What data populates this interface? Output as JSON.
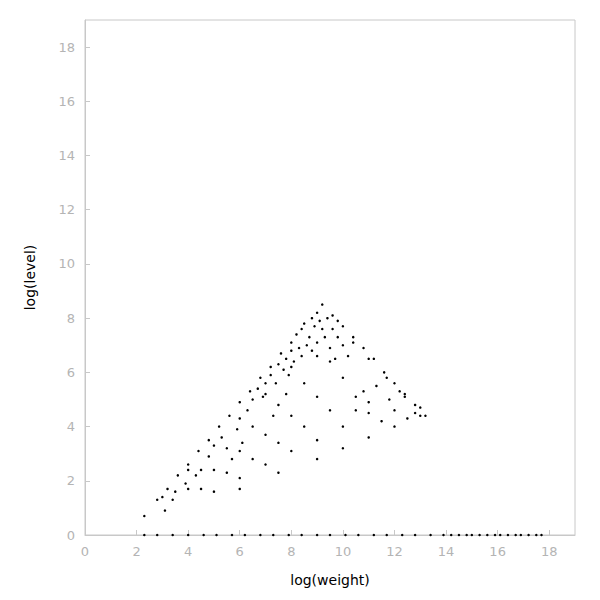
{
  "chart_data": {
    "type": "scatter",
    "xlabel": "log(weight)",
    "ylabel": "log(level)",
    "xlim": [
      0,
      19
    ],
    "ylim": [
      0,
      19
    ],
    "xticks": [
      0,
      2,
      4,
      6,
      8,
      10,
      12,
      14,
      16,
      18
    ],
    "yticks": [
      0,
      2,
      4,
      6,
      8,
      10,
      12,
      14,
      16,
      18
    ],
    "grid": false,
    "color": "#000000",
    "marker": "circle",
    "x": [
      2.3,
      2.8,
      3.4,
      4.0,
      4.6,
      5.1,
      5.7,
      6.2,
      6.8,
      7.3,
      7.9,
      8.4,
      9.0,
      9.5,
      10.1,
      10.6,
      11.2,
      11.7,
      12.3,
      12.8,
      13.4,
      13.9,
      14.2,
      14.5,
      14.8,
      15.0,
      15.3,
      15.6,
      15.9,
      16.1,
      16.4,
      16.7,
      16.9,
      17.2,
      17.5,
      17.7,
      2.3,
      2.8,
      3.2,
      3.6,
      4.0,
      4.4,
      4.8,
      5.2,
      5.6,
      6.0,
      6.4,
      6.8,
      7.2,
      7.6,
      8.0,
      8.4,
      8.8,
      9.2,
      9.6,
      10.0,
      10.4,
      10.8,
      11.2,
      11.6,
      12.0,
      12.4,
      12.8,
      13.2,
      3.0,
      4.0,
      5.0,
      6.0,
      7.0,
      8.0,
      9.0,
      9.8,
      3.5,
      4.5,
      5.5,
      6.5,
      7.5,
      8.5,
      9.5,
      10.4,
      4.0,
      5.0,
      6.0,
      7.0,
      8.0,
      9.0,
      10.0,
      11.0,
      4.5,
      5.5,
      6.5,
      7.5,
      8.5,
      9.5,
      10.5,
      11.7,
      5.0,
      6.0,
      7.0,
      8.0,
      9.0,
      10.0,
      11.0,
      12.4,
      6.0,
      7.5,
      9.0,
      10.0,
      11.0,
      12.0,
      13.0,
      11.5,
      12.0,
      12.5,
      12.8,
      13.0,
      11.8,
      12.2,
      11.3,
      10.8,
      10.5,
      11.0,
      8.2,
      8.5,
      8.7,
      8.9,
      9.0,
      9.1,
      8.6,
      8.3,
      8.0,
      7.8,
      7.5,
      7.7,
      8.1,
      8.4,
      8.8,
      9.2,
      9.4,
      9.3,
      9.6,
      9.8,
      9.5,
      9.0,
      10.0,
      10.2,
      9.7,
      7.2,
      7.0,
      6.7,
      6.5,
      6.9,
      7.4,
      7.9,
      3.4,
      3.9,
      4.8,
      5.3,
      5.9,
      6.3,
      6.1,
      5.7,
      7.3,
      7.8,
      3.1,
      4.3
    ],
    "values": [
      0,
      0,
      0,
      0,
      0,
      0,
      0,
      0,
      0,
      0,
      0,
      0,
      0,
      0,
      0,
      0,
      0,
      0,
      0,
      0,
      0,
      0,
      0,
      0,
      0,
      0,
      0,
      0,
      0,
      0,
      0,
      0,
      0,
      0,
      0,
      0,
      0.7,
      1.3,
      1.7,
      2.2,
      2.6,
      3.1,
      3.5,
      4.0,
      4.4,
      4.9,
      5.3,
      5.8,
      6.2,
      6.7,
      7.1,
      7.6,
      8.0,
      8.5,
      8.1,
      7.7,
      7.3,
      6.9,
      6.5,
      6.0,
      5.6,
      5.2,
      4.8,
      4.4,
      1.4,
      2.4,
      3.3,
      4.3,
      5.2,
      6.2,
      7.1,
      7.9,
      1.6,
      2.4,
      3.2,
      4.0,
      4.8,
      5.6,
      6.4,
      7.1,
      1.7,
      2.4,
      3.1,
      3.7,
      4.4,
      5.1,
      5.8,
      6.5,
      1.7,
      2.3,
      2.8,
      3.4,
      4.0,
      4.6,
      5.1,
      5.8,
      1.6,
      2.1,
      2.6,
      3.1,
      3.5,
      4.0,
      4.5,
      5.1,
      1.7,
      2.3,
      2.8,
      3.2,
      3.6,
      4.0,
      4.4,
      4.2,
      4.6,
      4.3,
      4.5,
      4.7,
      5.0,
      5.3,
      5.5,
      5.3,
      4.6,
      4.9,
      7.4,
      7.8,
      7.3,
      7.7,
      8.2,
      7.9,
      7.0,
      6.9,
      6.8,
      6.5,
      6.3,
      6.1,
      6.4,
      6.6,
      6.8,
      7.6,
      8.0,
      7.3,
      7.6,
      7.3,
      6.9,
      6.6,
      7.0,
      6.6,
      6.5,
      5.9,
      5.6,
      5.4,
      5.0,
      5.1,
      5.6,
      5.9,
      1.3,
      1.9,
      2.9,
      3.6,
      3.9,
      4.6,
      3.4,
      2.8,
      4.4,
      5.2,
      0.9,
      2.2
    ]
  }
}
